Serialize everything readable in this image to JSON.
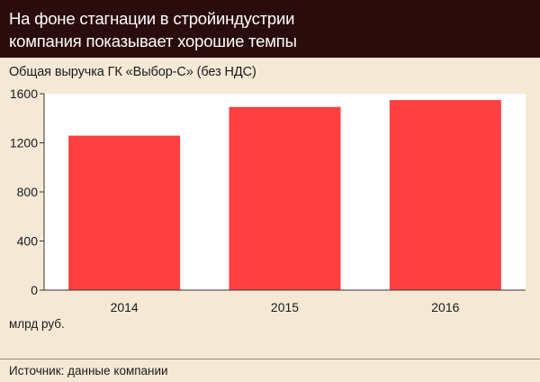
{
  "header": {
    "title_line1": "На фоне стагнации в стройиндустрии",
    "title_line2": "компания показывает хорошие темпы"
  },
  "colors": {
    "header_bg": "#2b0c0c",
    "bar": "#ff4040",
    "background": "#f5e9d6",
    "plot_bg": "#ffffff"
  },
  "chart_data": {
    "type": "bar",
    "title": "Общая выручка ГК «Выбор-С» (без НДС)",
    "unit_label": "млрд руб.",
    "categories": [
      "2014",
      "2015",
      "2016"
    ],
    "values": [
      1258,
      1492,
      1548
    ],
    "ylim": [
      0,
      1600
    ],
    "yticks": [
      0,
      400,
      800,
      1200,
      1600
    ],
    "grid": false,
    "legend": "none"
  },
  "footer": {
    "source": "Источник: данные компании"
  }
}
